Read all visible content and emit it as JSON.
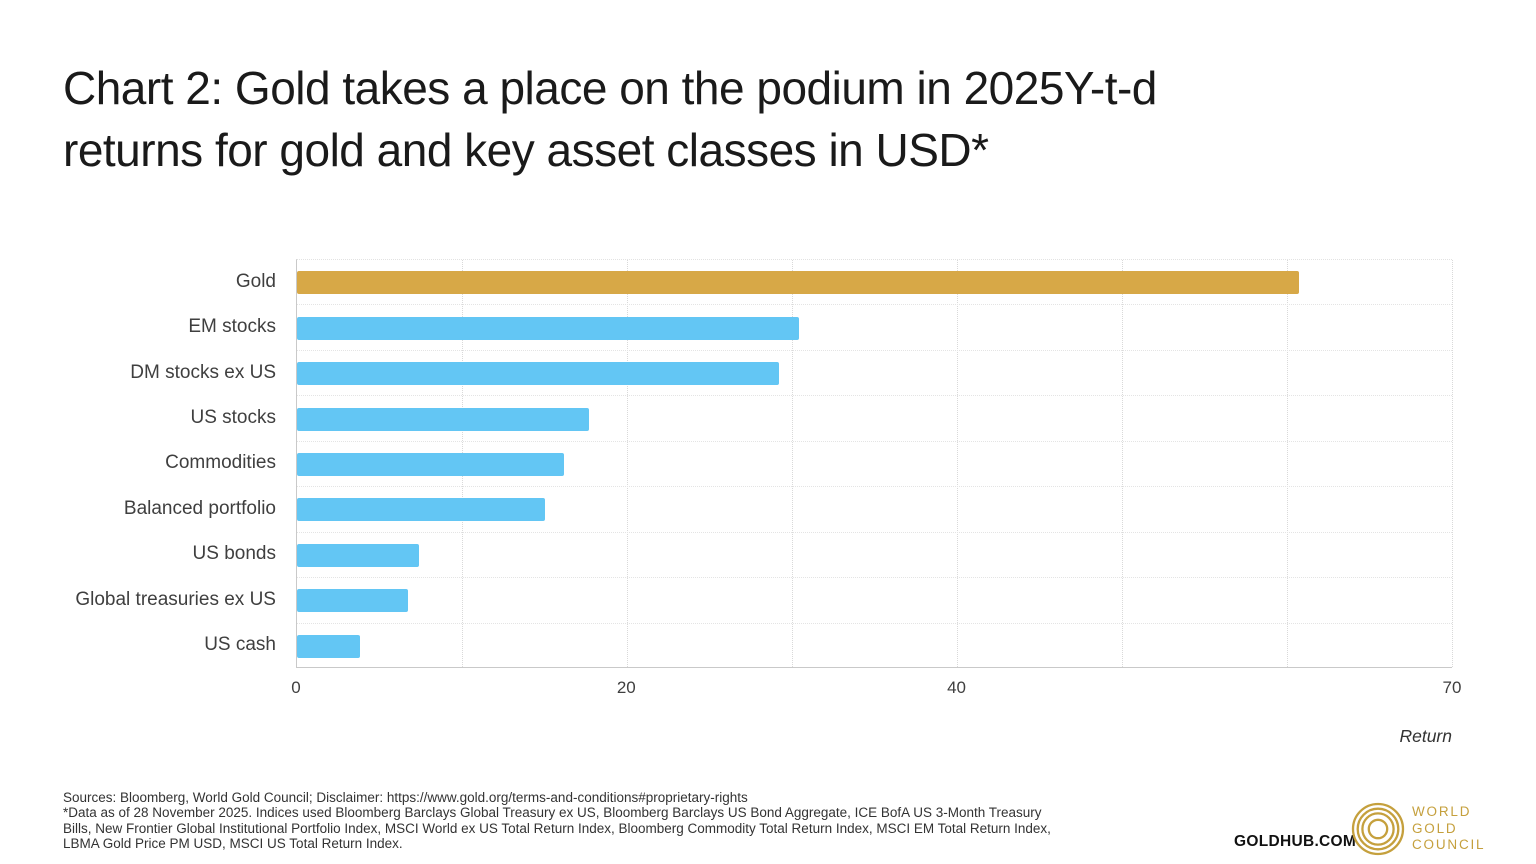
{
  "page": {
    "title_line1": "Chart 2: Gold takes a place on the podium in 2025Y-t-d",
    "title_line2": "returns for gold and key asset classes in USD*"
  },
  "chart_data": {
    "type": "bar",
    "orientation": "horizontal",
    "title": "Chart 2: Gold takes a place on the podium in 2025Y-t-d returns for gold and key asset classes in USD*",
    "categories": [
      "Gold",
      "EM stocks",
      "DM stocks ex US",
      "US stocks",
      "Commodities",
      "Balanced portfolio",
      "US bonds",
      "Global treasuries ex US",
      "US cash"
    ],
    "values": [
      60.7,
      30.4,
      29.2,
      17.7,
      16.2,
      15.0,
      7.4,
      6.7,
      3.8
    ],
    "bar_colors": [
      "#D7A847",
      "#63C6F4",
      "#63C6F4",
      "#63C6F4",
      "#63C6F4",
      "#63C6F4",
      "#63C6F4",
      "#63C6F4",
      "#63C6F4"
    ],
    "xlabel": "Return",
    "ylabel": "",
    "xlim": [
      0,
      70
    ],
    "x_tick_values": [
      0,
      20,
      40,
      70
    ],
    "x_tick_labels": [
      "0",
      "20",
      "40",
      "70"
    ],
    "gridline_values": [
      10,
      20,
      30,
      40,
      50,
      60,
      70
    ],
    "grid": true,
    "legend_position": "none"
  },
  "colors": {
    "gold_bar": "#D7A847",
    "blue_bar": "#63C6F4",
    "axis_line": "#c9c9c9",
    "gridline": "#d9d9d9",
    "title_text": "#1a1a1a",
    "label_text": "#3f3f3f",
    "logo_gold": "#C5A03D"
  },
  "axis": {
    "return_label": "Return"
  },
  "footer": {
    "sources_line": "Sources: Bloomberg, World Gold Council; Disclaimer: https://www.gold.org/terms-and-conditions#proprietary-rights",
    "data_note": "*Data as of 28 November 2025. Indices used Bloomberg Barclays Global Treasury ex US, Bloomberg Barclays US Bond Aggregate, ICE BofA US 3-Month Treasury Bills, New Frontier Global Institutional Portfolio Index, MSCI World ex US Total Return Index, Bloomberg Commodity Total Return Index, MSCI EM Total Return Index, LBMA Gold Price PM USD, MSCI US Total Return Index.",
    "site": "GOLDHUB.COM",
    "logo_line1": "WORLD",
    "logo_line2": "GOLD",
    "logo_line3": "COUNCIL"
  }
}
